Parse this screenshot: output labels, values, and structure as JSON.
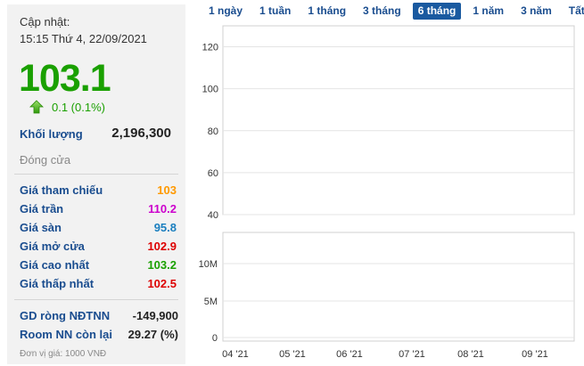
{
  "header": {
    "update_label": "Cập nhật:",
    "update_time": "15:15 Thứ 4, 22/09/2021"
  },
  "quote": {
    "price": "103.1",
    "change": "0.1 (0.1%)",
    "volume_label": "Khối lượng",
    "volume_value": "2,196,300",
    "close_label": "Đóng cửa"
  },
  "stats": [
    {
      "label": "Giá tham chiếu",
      "value": "103",
      "color": "#ff9900"
    },
    {
      "label": "Giá trần",
      "value": "110.2",
      "color": "#cc00cc"
    },
    {
      "label": "Giá sàn",
      "value": "95.8",
      "color": "#1a7fbf"
    },
    {
      "label": "Giá mở cửa",
      "value": "102.9",
      "color": "#dd0000"
    },
    {
      "label": "Giá cao nhất",
      "value": "103.2",
      "color": "#1aa000"
    },
    {
      "label": "Giá thấp nhất",
      "value": "102.5",
      "color": "#dd0000"
    }
  ],
  "foreign": {
    "net_label": "GD ròng NĐTNN",
    "net_value": "-149,900",
    "room_label": "Room NN còn lại",
    "room_value": "29.27 (%)"
  },
  "unit_note": "Đơn vị giá: 1000 VNĐ",
  "range_tabs": [
    {
      "label": "1 ngày",
      "active": false
    },
    {
      "label": "1 tuần",
      "active": false
    },
    {
      "label": "1 tháng",
      "active": false
    },
    {
      "label": "3 tháng",
      "active": false
    },
    {
      "label": "6 tháng",
      "active": true
    },
    {
      "label": "1 năm",
      "active": false
    },
    {
      "label": "3 năm",
      "active": false
    },
    {
      "label": "Tất cả",
      "active": false
    }
  ],
  "chart_data": [
    {
      "type": "area",
      "x": "not readable",
      "values": "not readable",
      "ylim": [
        40,
        130
      ],
      "yticks": [
        "120",
        "100",
        "80",
        "60",
        "40"
      ],
      "grid": true,
      "colors": {
        "line": "#3a6ea5",
        "fill_top": "#7ab8e8",
        "fill_bottom": "#e6f2fb"
      }
    },
    {
      "type": "bar",
      "x": "not readable",
      "values": "not readable",
      "yticks": [
        "10M",
        "5M",
        "0"
      ],
      "xticks": [
        "04 '21",
        "05 '21",
        "06 '21",
        "07 '21",
        "08 '21",
        "09 '21"
      ],
      "grid": true,
      "colors": {
        "bar": "#3a6ea5"
      }
    }
  ]
}
